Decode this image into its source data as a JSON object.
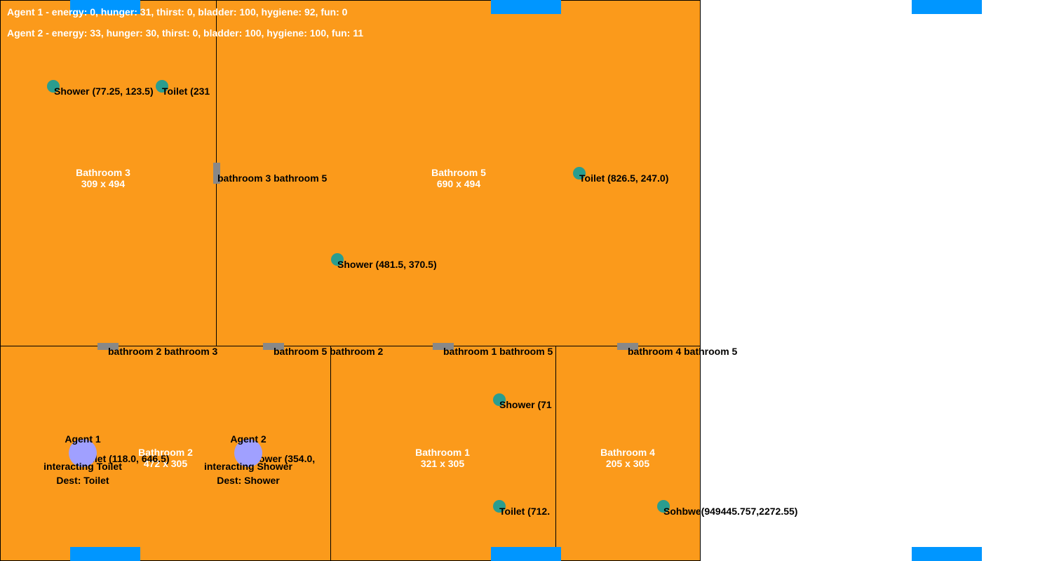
{
  "status": {
    "agent1": "Agent 1 - energy: 0, hunger: 31, thirst: 0, bladder: 100, hygiene: 92, fun: 0",
    "agent2": "Agent 2 - energy: 33, hunger: 30, thirst: 0, bladder: 100, hygiene: 100, fun: 11"
  },
  "rooms": {
    "bathroom3": {
      "name": "Bathroom 3",
      "size": "309 x 494"
    },
    "bathroom5": {
      "name": "Bathroom 5",
      "size": "690 x 494"
    },
    "bathroom2": {
      "name": "Bathroom 2",
      "size": "472 x 305"
    },
    "bathroom1": {
      "name": "Bathroom 1",
      "size": "321 x 305"
    },
    "bathroom4": {
      "name": "Bathroom 4",
      "size": "205 x 305"
    }
  },
  "doors": {
    "b3_b5": "bathroom 3 bathroom 5",
    "b2_b3": "bathroom 2 bathroom 3",
    "b5_b2": "bathroom 5 bathroom 2",
    "b1_b5": "bathroom 1 bathroom 5",
    "b4_b5": "bathroom 4 bathroom 5"
  },
  "objects": {
    "shower_b3": "Shower (77.25, 123.5)",
    "toilet_b3": "Toilet (231",
    "toilet_b5": "Toilet (826.5, 247.0)",
    "shower_b5": "Shower (481.5, 370.5)",
    "shower_b1": "Shower (71",
    "toilet_b1": "Toilet (712.",
    "toilet_b2": "ilet (118.0, 646.5)",
    "shower_b2": "ower (354.0,",
    "overlap_b4": "Sohbwe(949445.757,2272.55)"
  },
  "agents": {
    "agent1": {
      "name": "Agent 1",
      "action": "interacting Toilet",
      "dest": "Dest: Toilet"
    },
    "agent2": {
      "name": "Agent 2",
      "action": "interacting Shower",
      "dest": "Dest: Shower"
    }
  },
  "colors": {
    "room_fill": "#fb9a1b",
    "window": "#0096ff",
    "object": "#2a9d8f",
    "agent": "#a0a0ff",
    "door": "#888888"
  }
}
